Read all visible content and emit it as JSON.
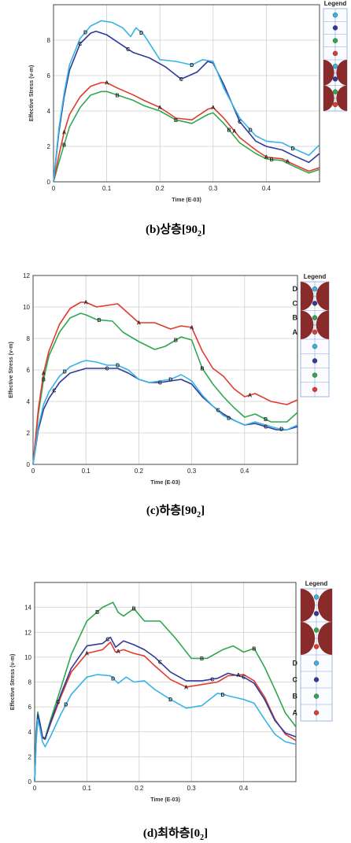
{
  "colors": {
    "A": "#e23a2e",
    "B": "#2fa84f",
    "C": "#2f3a9c",
    "D": "#38b3e6",
    "legend_dome": "#8a2b2b",
    "grid": "#cfcfcf"
  },
  "chart_data": [
    {
      "type": "line",
      "caption": {
        "prefix": "(b)상층[90",
        "sub": "2",
        "suffix": "]"
      },
      "xlabel": "Time (E-03)",
      "ylabel": "Effective Stress (v-m)",
      "xlim": [
        0,
        0.5
      ],
      "ylim": [
        0,
        10
      ],
      "xticks": [
        "0",
        "0.1",
        "0.2",
        "0.3",
        "0.4"
      ],
      "yticks": [
        "0",
        "2",
        "4",
        "6",
        "8"
      ],
      "legend": {
        "title": "Legend",
        "entries": []
      },
      "series": [
        {
          "name": "A",
          "x": [
            0,
            0.01,
            0.02,
            0.03,
            0.05,
            0.07,
            0.09,
            0.1,
            0.12,
            0.15,
            0.17,
            0.2,
            0.23,
            0.26,
            0.29,
            0.3,
            0.32,
            0.35,
            0.38,
            0.4,
            0.43,
            0.45,
            0.48,
            0.5
          ],
          "y": [
            0,
            1.5,
            2.8,
            3.8,
            4.8,
            5.4,
            5.6,
            5.6,
            5.3,
            4.9,
            4.6,
            4.2,
            3.6,
            3.5,
            4.1,
            4.2,
            3.6,
            2.5,
            1.8,
            1.4,
            1.3,
            1.0,
            0.6,
            0.8
          ]
        },
        {
          "name": "B",
          "x": [
            0,
            0.01,
            0.02,
            0.03,
            0.05,
            0.07,
            0.09,
            0.1,
            0.12,
            0.15,
            0.17,
            0.2,
            0.23,
            0.26,
            0.29,
            0.3,
            0.32,
            0.35,
            0.38,
            0.4,
            0.43,
            0.45,
            0.48,
            0.5
          ],
          "y": [
            0,
            1.1,
            2.1,
            3.1,
            4.2,
            4.9,
            5.1,
            5.1,
            4.9,
            4.6,
            4.3,
            4.0,
            3.5,
            3.3,
            3.8,
            3.9,
            3.3,
            2.2,
            1.6,
            1.3,
            1.2,
            0.9,
            0.5,
            0.7
          ]
        },
        {
          "name": "C",
          "x": [
            0,
            0.01,
            0.02,
            0.03,
            0.05,
            0.07,
            0.08,
            0.1,
            0.12,
            0.15,
            0.18,
            0.21,
            0.24,
            0.27,
            0.29,
            0.3,
            0.32,
            0.35,
            0.38,
            0.4,
            0.43,
            0.45,
            0.48,
            0.5
          ],
          "y": [
            0,
            2.8,
            4.8,
            6.3,
            7.8,
            8.4,
            8.5,
            8.3,
            7.9,
            7.3,
            7.0,
            6.5,
            5.8,
            6.2,
            6.8,
            6.7,
            5.5,
            3.4,
            2.3,
            2.0,
            1.8,
            1.5,
            1.1,
            1.6
          ]
        },
        {
          "name": "D",
          "x": [
            0,
            0.01,
            0.02,
            0.03,
            0.05,
            0.07,
            0.09,
            0.11,
            0.13,
            0.145,
            0.155,
            0.17,
            0.2,
            0.23,
            0.26,
            0.28,
            0.3,
            0.32,
            0.35,
            0.38,
            0.4,
            0.43,
            0.45,
            0.48,
            0.5
          ],
          "y": [
            0,
            3.0,
            5.0,
            6.6,
            8.1,
            8.8,
            9.1,
            9.0,
            8.7,
            8.2,
            8.7,
            8.3,
            6.9,
            6.8,
            6.6,
            6.9,
            6.8,
            5.3,
            3.6,
            2.6,
            2.3,
            2.2,
            1.9,
            1.5,
            2.1
          ]
        }
      ],
      "markers": {
        "A": [
          0.02,
          0.1,
          0.2,
          0.3,
          0.34,
          0.4,
          0.44
        ],
        "B": [
          0.02,
          0.12,
          0.23,
          0.33,
          0.41
        ],
        "C": [
          0.05,
          0.14,
          0.24,
          0.35
        ],
        "D": [
          0.06,
          0.165,
          0.26,
          0.37,
          0.45
        ]
      },
      "marker_labels": {
        "A": "A",
        "B": "B",
        "C": "C",
        "D": "D"
      }
    },
    {
      "type": "line",
      "caption": {
        "prefix": "(c)하층[90",
        "sub": "2",
        "suffix": "]"
      },
      "xlabel": "Time (E-03)",
      "ylabel": "Effective Stress (v-m)",
      "xlim": [
        0,
        0.5
      ],
      "ylim": [
        0,
        12
      ],
      "xticks": [
        "0",
        "0.1",
        "0.2",
        "0.3",
        "0.4"
      ],
      "yticks": [
        "0",
        "2",
        "4",
        "6",
        "8",
        "10",
        "12"
      ],
      "legend": {
        "title": "Legend",
        "entries": [
          "D",
          "C",
          "B",
          "A"
        ]
      },
      "series": [
        {
          "name": "A",
          "x": [
            0,
            0.01,
            0.02,
            0.03,
            0.05,
            0.07,
            0.09,
            0.1,
            0.12,
            0.14,
            0.16,
            0.18,
            0.2,
            0.23,
            0.26,
            0.28,
            0.3,
            0.32,
            0.34,
            0.36,
            0.38,
            0.4,
            0.42,
            0.45,
            0.48,
            0.5
          ],
          "y": [
            0,
            3.5,
            5.8,
            7.2,
            8.9,
            9.9,
            10.3,
            10.3,
            10.0,
            10.1,
            10.2,
            9.6,
            9.0,
            9.0,
            8.6,
            8.8,
            8.7,
            7.2,
            6.1,
            5.6,
            4.8,
            4.3,
            4.5,
            4.0,
            3.8,
            4.1
          ]
        },
        {
          "name": "B",
          "x": [
            0,
            0.01,
            0.02,
            0.03,
            0.05,
            0.07,
            0.09,
            0.1,
            0.12,
            0.15,
            0.17,
            0.2,
            0.23,
            0.25,
            0.28,
            0.3,
            0.32,
            0.34,
            0.36,
            0.38,
            0.4,
            0.42,
            0.45,
            0.48,
            0.5
          ],
          "y": [
            0,
            3.2,
            5.4,
            6.9,
            8.4,
            9.3,
            9.6,
            9.5,
            9.2,
            9.1,
            8.4,
            7.8,
            7.3,
            7.5,
            8.1,
            7.9,
            6.1,
            5.1,
            4.3,
            3.6,
            3.0,
            3.2,
            2.7,
            2.7,
            3.3
          ]
        },
        {
          "name": "C",
          "x": [
            0,
            0.01,
            0.02,
            0.03,
            0.05,
            0.07,
            0.09,
            0.1,
            0.12,
            0.14,
            0.16,
            0.18,
            0.2,
            0.22,
            0.24,
            0.26,
            0.28,
            0.3,
            0.32,
            0.34,
            0.36,
            0.38,
            0.4,
            0.42,
            0.44,
            0.46,
            0.48,
            0.5
          ],
          "y": [
            0,
            2.2,
            3.5,
            4.2,
            5.2,
            5.8,
            6.0,
            6.1,
            6.1,
            6.1,
            6.1,
            5.8,
            5.4,
            5.2,
            5.2,
            5.3,
            5.4,
            5.1,
            4.3,
            3.7,
            3.2,
            2.8,
            2.5,
            2.6,
            2.4,
            2.2,
            2.2,
            2.4
          ]
        },
        {
          "name": "D",
          "x": [
            0,
            0.01,
            0.02,
            0.03,
            0.05,
            0.07,
            0.09,
            0.1,
            0.12,
            0.14,
            0.16,
            0.18,
            0.2,
            0.22,
            0.24,
            0.26,
            0.28,
            0.3,
            0.32,
            0.34,
            0.36,
            0.38,
            0.4,
            0.42,
            0.44,
            0.46,
            0.48,
            0.5
          ],
          "y": [
            0,
            2.4,
            3.8,
            4.6,
            5.6,
            6.2,
            6.5,
            6.6,
            6.5,
            6.3,
            6.3,
            6.0,
            5.4,
            5.2,
            5.3,
            5.4,
            5.7,
            5.3,
            4.4,
            3.7,
            3.1,
            2.8,
            2.5,
            2.7,
            2.5,
            2.3,
            2.2,
            2.5
          ]
        }
      ],
      "markers": {
        "A": [
          0.02,
          0.1,
          0.2,
          0.3,
          0.41
        ],
        "B": [
          0.02,
          0.125,
          0.27,
          0.32,
          0.44
        ],
        "C": [
          0.04,
          0.14,
          0.24,
          0.35,
          0.44
        ],
        "D": [
          0.06,
          0.16,
          0.26,
          0.37,
          0.47
        ]
      },
      "marker_labels": {
        "A": "A",
        "B": "B",
        "C": "C",
        "D": "D"
      }
    },
    {
      "type": "line",
      "caption": {
        "prefix": "(d)최하층[0",
        "sub": "2",
        "suffix": "]"
      },
      "xlabel": "Time (E-03)",
      "ylabel": "Effective Stress (v-m)",
      "xlim": [
        0,
        0.5
      ],
      "ylim": [
        0,
        16
      ],
      "xticks": [
        "0",
        "0.1",
        "0.2",
        "0.3",
        "0.4"
      ],
      "yticks": [
        "0",
        "2",
        "4",
        "6",
        "8",
        "10",
        "12",
        "14"
      ],
      "legend": {
        "title": "Legend",
        "entries": [
          "D",
          "C",
          "B",
          "A"
        ]
      },
      "series": [
        {
          "name": "A",
          "x": [
            0,
            0.003,
            0.006,
            0.01,
            0.015,
            0.02,
            0.03,
            0.05,
            0.07,
            0.1,
            0.13,
            0.145,
            0.155,
            0.17,
            0.19,
            0.21,
            0.23,
            0.26,
            0.29,
            0.32,
            0.35,
            0.37,
            0.4,
            0.42,
            0.44,
            0.46,
            0.48,
            0.5
          ],
          "y": [
            0,
            3.5,
            5.3,
            4.6,
            3.5,
            3.4,
            4.6,
            6.8,
            8.8,
            10.3,
            10.6,
            11.2,
            10.4,
            10.6,
            10.3,
            10.1,
            9.3,
            8.2,
            7.6,
            7.8,
            8.0,
            8.5,
            8.6,
            8.1,
            6.8,
            5.0,
            3.8,
            3.3
          ]
        },
        {
          "name": "B",
          "x": [
            0,
            0.003,
            0.006,
            0.01,
            0.015,
            0.02,
            0.03,
            0.05,
            0.07,
            0.1,
            0.13,
            0.15,
            0.16,
            0.17,
            0.19,
            0.21,
            0.24,
            0.27,
            0.3,
            0.33,
            0.36,
            0.38,
            0.4,
            0.42,
            0.44,
            0.46,
            0.48,
            0.5
          ],
          "y": [
            0,
            4.0,
            5.6,
            4.8,
            3.6,
            3.5,
            4.9,
            7.5,
            10.2,
            12.9,
            14.0,
            14.4,
            13.6,
            13.3,
            13.9,
            12.9,
            12.9,
            11.5,
            9.9,
            9.9,
            10.6,
            10.9,
            10.4,
            10.7,
            9.2,
            7.4,
            5.5,
            4.4
          ]
        },
        {
          "name": "C",
          "x": [
            0,
            0.003,
            0.006,
            0.01,
            0.015,
            0.02,
            0.03,
            0.05,
            0.07,
            0.1,
            0.13,
            0.145,
            0.155,
            0.17,
            0.19,
            0.21,
            0.23,
            0.26,
            0.29,
            0.32,
            0.35,
            0.37,
            0.4,
            0.42,
            0.44,
            0.46,
            0.48,
            0.5
          ],
          "y": [
            0,
            3.6,
            5.4,
            4.7,
            3.6,
            3.4,
            4.7,
            7.0,
            9.1,
            10.9,
            11.1,
            11.6,
            10.8,
            11.3,
            11.0,
            10.6,
            10.0,
            8.8,
            8.1,
            8.1,
            8.3,
            8.7,
            8.4,
            7.9,
            6.6,
            4.9,
            3.9,
            3.6
          ]
        },
        {
          "name": "D",
          "x": [
            0,
            0.003,
            0.006,
            0.01,
            0.015,
            0.02,
            0.03,
            0.05,
            0.07,
            0.1,
            0.12,
            0.145,
            0.16,
            0.175,
            0.19,
            0.21,
            0.23,
            0.26,
            0.29,
            0.32,
            0.35,
            0.37,
            0.4,
            0.42,
            0.44,
            0.46,
            0.48,
            0.5
          ],
          "y": [
            0,
            3.2,
            5.0,
            4.3,
            3.2,
            2.8,
            3.6,
            5.4,
            7.0,
            8.4,
            8.6,
            8.5,
            7.9,
            8.4,
            8.0,
            8.1,
            7.4,
            6.6,
            5.9,
            6.1,
            7.1,
            6.9,
            6.6,
            6.3,
            5.0,
            3.8,
            3.2,
            3.0
          ]
        }
      ],
      "markers": {
        "A": [
          0.1,
          0.16,
          0.29,
          0.39
        ],
        "B": [
          0.12,
          0.19,
          0.32,
          0.42
        ],
        "C": [
          0.14,
          0.24,
          0.34,
          0.4
        ],
        "D": [
          0.15,
          0.26,
          0.36
        ],
        "D2": [
          0.06
        ],
        "C2": [
          0.045
        ]
      },
      "marker_labels": {
        "A": "A",
        "B": "B",
        "C": "C",
        "D": "D"
      }
    }
  ]
}
